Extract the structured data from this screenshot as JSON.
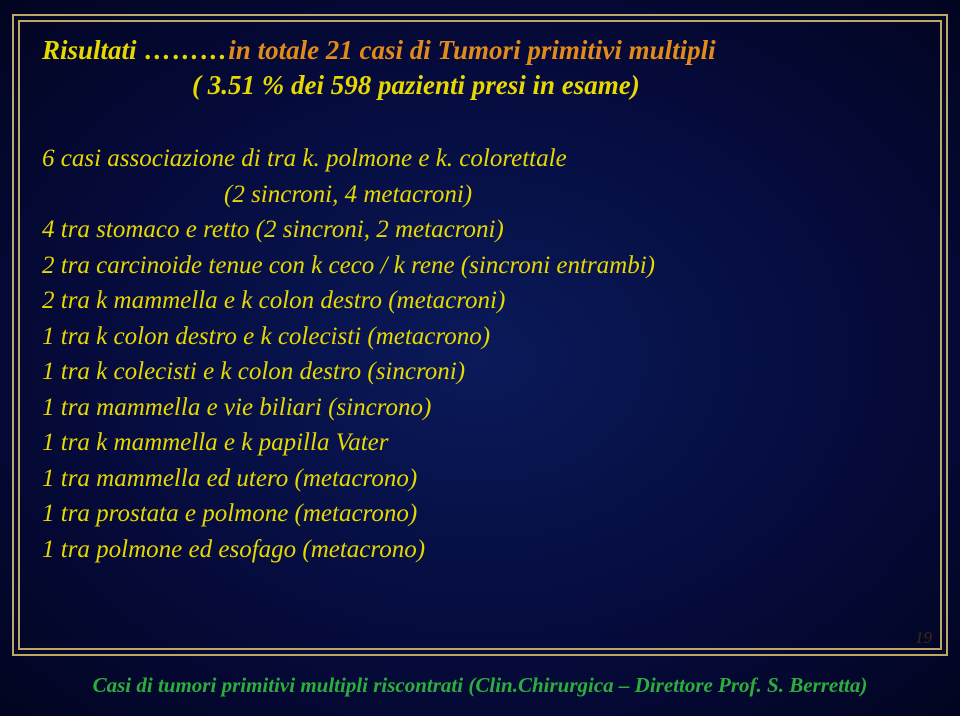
{
  "colors": {
    "yellow": "#e6d800",
    "orange": "#e38b1a",
    "green": "#2cae3e",
    "frame": "#bba866",
    "bg_inner": "#0a1a5a",
    "bg_outer": "#020520"
  },
  "title": {
    "word1": "Risultati",
    "dots": " ………",
    "rest": "in totale  21 casi  di  Tumori primitivi multipli",
    "sub": "( 3.51 % dei 598 pazienti presi in esame)"
  },
  "lines": [
    "6 casi associazione di tra k. polmone e k. colorettale",
    "(2 sincroni, 4 metacroni)",
    "4 tra stomaco e retto (2 sincroni, 2 metacroni)",
    "2 tra carcinoide tenue con k ceco / k rene (sincroni entrambi)",
    "2 tra k mammella e k colon destro (metacroni)",
    "1 tra k colon destro e k colecisti  (metacrono)",
    "1 tra k colecisti e k colon destro   (sincroni)",
    "1 tra mammella e vie biliari (sincrono)",
    "1 tra k mammella e k papilla Vater",
    "1 tra mammella ed utero (metacrono)",
    "1 tra prostata e polmone (metacrono)",
    "1 tra polmone ed esofago (metacrono)"
  ],
  "footer": "Casi di tumori primitivi multipli riscontrati (Clin.Chirurgica – Direttore Prof.  S. Berretta)",
  "page": "19"
}
